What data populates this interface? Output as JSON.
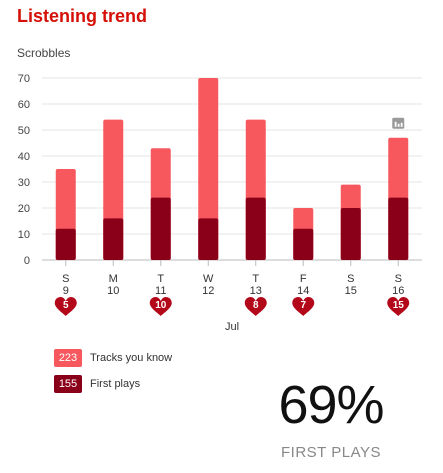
{
  "header": {
    "title": "Listening trend"
  },
  "chart_data": {
    "type": "bar",
    "ylabel": "Scrobbles",
    "ylim": [
      0,
      70
    ],
    "yticks": [
      0,
      10,
      20,
      30,
      40,
      50,
      60,
      70
    ],
    "categories": [
      "S 9",
      "M 10",
      "T 11",
      "W 12",
      "T 13",
      "F 14",
      "S 15",
      "S 16"
    ],
    "day_letters": [
      "S",
      "M",
      "T",
      "W",
      "T",
      "F",
      "S",
      "S"
    ],
    "day_numbers": [
      "9",
      "10",
      "11",
      "12",
      "13",
      "14",
      "15",
      "16"
    ],
    "month_label": "Jul",
    "series": [
      {
        "name": "Tracks you know",
        "color": "#f7585e",
        "values": [
          35,
          54,
          43,
          70,
          54,
          20,
          29,
          47
        ]
      },
      {
        "name": "First plays",
        "color": "#8b0019",
        "values": [
          12,
          16,
          24,
          16,
          24,
          12,
          20,
          24
        ]
      }
    ],
    "heart_markers": [
      {
        "index": 0,
        "value": "5"
      },
      {
        "index": 2,
        "value": "10"
      },
      {
        "index": 4,
        "value": "8"
      },
      {
        "index": 5,
        "value": "7"
      },
      {
        "index": 7,
        "value": "15"
      }
    ],
    "bar_icon": {
      "index": 7,
      "name": "bar-chart-icon"
    },
    "grid": true,
    "legend": "bottom-left"
  },
  "legend": {
    "known": {
      "count": "223",
      "label": "Tracks you know",
      "color": "#f7585e"
    },
    "first": {
      "count": "155",
      "label": "First plays",
      "color": "#8b0019"
    }
  },
  "summary": {
    "percent": "69%",
    "label": "FIRST PLAYS"
  }
}
